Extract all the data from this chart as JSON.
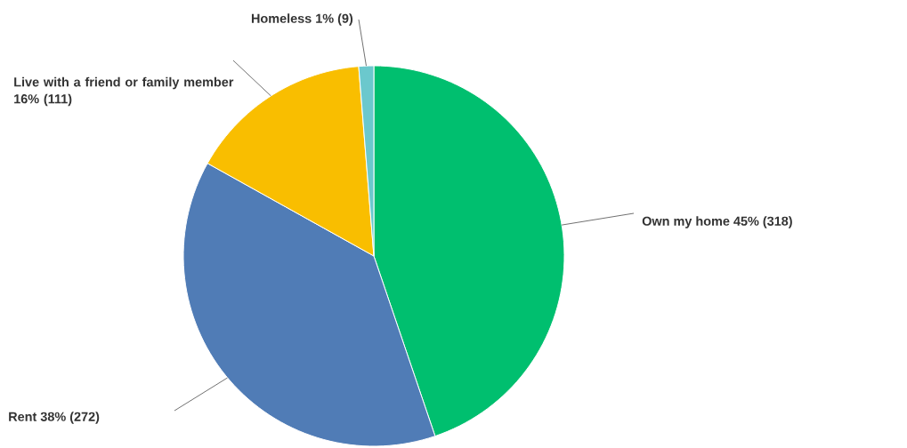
{
  "chart_data": {
    "type": "pie",
    "categories": [
      "Own my home",
      "Rent",
      "Live with a friend or family member",
      "Homeless"
    ],
    "values": [
      318,
      272,
      111,
      9
    ],
    "colors": [
      "#00bf6f",
      "#507cb6",
      "#f9be00",
      "#6bc8cd"
    ],
    "value_labels": [
      "45% (318)",
      "38% (272)",
      "16% (111)",
      "1% (9)"
    ]
  }
}
